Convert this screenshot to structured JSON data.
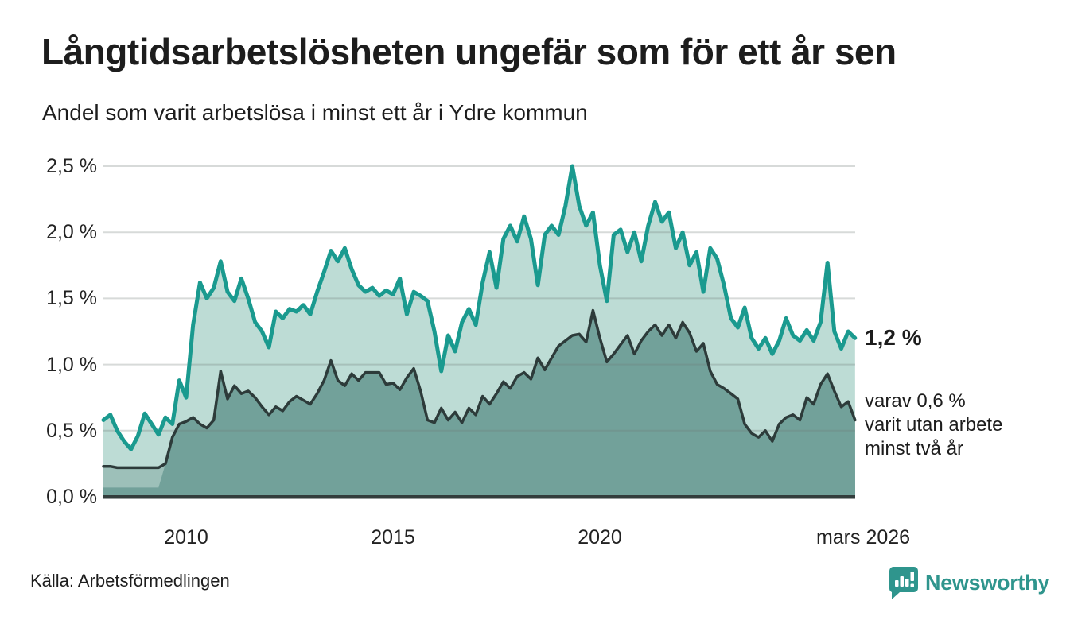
{
  "header": {
    "title": "Långtidsarbetslösheten ungefär som för ett år sen",
    "subtitle": "Andel som varit arbetslösa i minst ett år i Ydre kommun"
  },
  "chart_data": {
    "type": "area",
    "title": "Långtidsarbetslösheten ungefär som för ett år sen",
    "subtitle": "Andel som varit arbetslösa i minst ett år i Ydre kommun",
    "unit": "%",
    "x_start": 2008.0,
    "x_step_years": 0.166667,
    "x_end": 2026.17,
    "ylim": [
      0,
      2.5
    ],
    "grid": "horizontal",
    "legend_position": "right-annotations",
    "yticks": [
      {
        "value": 2.5,
        "label": "2,5 %"
      },
      {
        "value": 2.0,
        "label": "2,0 %"
      },
      {
        "value": 1.5,
        "label": "1,5 %"
      },
      {
        "value": 1.0,
        "label": "1,0 %"
      },
      {
        "value": 0.5,
        "label": "0,5 %"
      },
      {
        "value": 0.0,
        "label": "0,0 %"
      }
    ],
    "xticks": [
      {
        "value": 2010,
        "label": "2010"
      },
      {
        "value": 2015,
        "label": "2015"
      },
      {
        "value": 2020,
        "label": "2020"
      },
      {
        "value": 2026.17,
        "label": "mars 2026"
      }
    ],
    "series": [
      {
        "name": "Andel som varit arbetslösa minst ett år",
        "line_color": "#1a9a8f",
        "fill_color": "#bddcd5",
        "latest_label": "1,2 %",
        "values": [
          0.58,
          0.62,
          0.5,
          0.42,
          0.36,
          0.46,
          0.63,
          0.55,
          0.47,
          0.6,
          0.55,
          0.88,
          0.75,
          1.3,
          1.62,
          1.5,
          1.58,
          1.78,
          1.55,
          1.48,
          1.65,
          1.5,
          1.32,
          1.25,
          1.13,
          1.4,
          1.35,
          1.42,
          1.4,
          1.45,
          1.38,
          1.55,
          1.7,
          1.86,
          1.78,
          1.88,
          1.72,
          1.6,
          1.55,
          1.58,
          1.52,
          1.56,
          1.53,
          1.65,
          1.38,
          1.55,
          1.52,
          1.48,
          1.25,
          0.95,
          1.22,
          1.1,
          1.32,
          1.42,
          1.3,
          1.62,
          1.85,
          1.58,
          1.95,
          2.05,
          1.93,
          2.12,
          1.95,
          1.6,
          1.98,
          2.05,
          1.98,
          2.2,
          2.5,
          2.2,
          2.05,
          2.15,
          1.75,
          1.48,
          1.98,
          2.02,
          1.85,
          2.0,
          1.78,
          2.05,
          2.23,
          2.08,
          2.15,
          1.88,
          2.0,
          1.75,
          1.85,
          1.55,
          1.88,
          1.8,
          1.6,
          1.35,
          1.28,
          1.43,
          1.2,
          1.12,
          1.2,
          1.08,
          1.18,
          1.35,
          1.22,
          1.18,
          1.26,
          1.18,
          1.32,
          1.77,
          1.25,
          1.12,
          1.25,
          1.2
        ]
      },
      {
        "name": "varav utan arbete minst två år",
        "line_color": "#2d3b3a",
        "fill_color": "#72a19a",
        "early_fill_color": "#9dc0b9",
        "early_strip_value": 0.07,
        "early_end_index": 9,
        "latest_label": "varav 0,6 % varit utan arbete minst två år",
        "values": [
          0.23,
          0.23,
          0.22,
          0.22,
          0.22,
          0.22,
          0.22,
          0.22,
          0.22,
          0.25,
          0.45,
          0.55,
          0.57,
          0.6,
          0.55,
          0.52,
          0.58,
          0.95,
          0.74,
          0.84,
          0.78,
          0.8,
          0.75,
          0.68,
          0.62,
          0.68,
          0.65,
          0.72,
          0.76,
          0.73,
          0.7,
          0.78,
          0.88,
          1.03,
          0.88,
          0.84,
          0.93,
          0.88,
          0.94,
          0.94,
          0.94,
          0.85,
          0.86,
          0.81,
          0.9,
          0.97,
          0.8,
          0.58,
          0.56,
          0.67,
          0.58,
          0.64,
          0.56,
          0.67,
          0.62,
          0.76,
          0.7,
          0.78,
          0.87,
          0.82,
          0.91,
          0.94,
          0.89,
          1.05,
          0.96,
          1.05,
          1.14,
          1.18,
          1.22,
          1.23,
          1.17,
          1.41,
          1.2,
          1.02,
          1.08,
          1.15,
          1.22,
          1.08,
          1.18,
          1.25,
          1.3,
          1.22,
          1.3,
          1.2,
          1.32,
          1.24,
          1.1,
          1.16,
          0.95,
          0.85,
          0.82,
          0.78,
          0.74,
          0.55,
          0.48,
          0.45,
          0.5,
          0.42,
          0.55,
          0.6,
          0.62,
          0.58,
          0.75,
          0.7,
          0.85,
          0.93,
          0.8,
          0.68,
          0.72,
          0.58
        ]
      }
    ],
    "annotations": {
      "latest_total": "1,2 %",
      "latest_two_year_line1": "varav 0,6 %",
      "latest_two_year_line2": "varit utan arbete",
      "latest_two_year_line3": "minst två år"
    },
    "gridline_color": "#e2e2e2",
    "axis_color": "#333d3c"
  },
  "footer": {
    "source": "Källa: Arbetsförmedlingen",
    "brand": "Newsworthy",
    "brand_color": "#2f958d"
  }
}
